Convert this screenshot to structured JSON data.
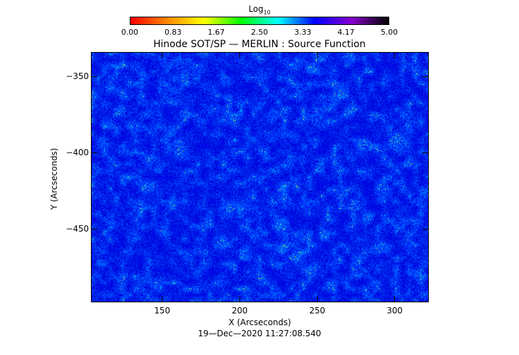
{
  "colorbar": {
    "title_main": "Log",
    "title_sub": "10",
    "ticks": [
      "0.00",
      "0.83",
      "1.67",
      "2.50",
      "3.33",
      "4.17",
      "5.00"
    ],
    "colors": [
      "#ff0000",
      "#ff8800",
      "#ffff00",
      "#00ff00",
      "#00ffff",
      "#0000ff",
      "#8800cc",
      "#000000"
    ]
  },
  "plot": {
    "title": "Hinode SOT/SP — MERLIN : Source Function",
    "xlabel": "X (Arcseconds)",
    "ylabel": "Y (Arcseconds)",
    "xticks": [
      "150",
      "200",
      "250",
      "300"
    ],
    "yticks": [
      "−350",
      "−400",
      "−450"
    ],
    "xlim": [
      104,
      322
    ],
    "ylim": [
      -498,
      -334
    ]
  },
  "footer": {
    "timestamp": "19—Dec—2020 11:27:08.540"
  }
}
